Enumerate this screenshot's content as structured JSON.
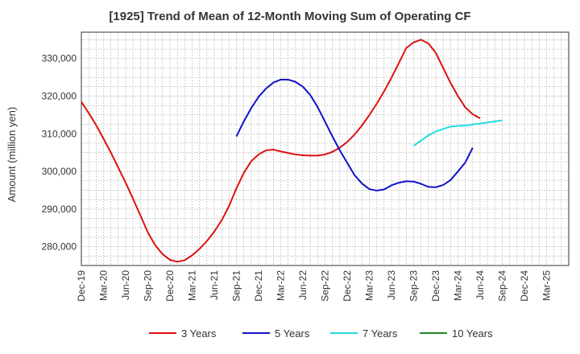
{
  "chart_data": {
    "type": "line",
    "title": "[1925]  Trend of Mean of 12-Month Moving Sum of Operating CF",
    "xlabel": "",
    "ylabel": "Amount (million yen)",
    "ylim": [
      275000,
      337000
    ],
    "yticks": [
      280000,
      290000,
      300000,
      310000,
      320000,
      330000
    ],
    "ytick_labels": [
      "280,000",
      "290,000",
      "300,000",
      "310,000",
      "320,000",
      "330,000"
    ],
    "x_start": "Dec-19",
    "x_months": 66,
    "xticks": [
      "Dec-19",
      "Mar-20",
      "Jun-20",
      "Sep-20",
      "Dec-20",
      "Mar-21",
      "Jun-21",
      "Sep-21",
      "Dec-21",
      "Mar-22",
      "Jun-22",
      "Sep-22",
      "Dec-22",
      "Mar-23",
      "Jun-23",
      "Sep-23",
      "Dec-23",
      "Mar-24",
      "Jun-24",
      "Sep-24",
      "Dec-24",
      "Mar-25"
    ],
    "grid": true,
    "legend_position": "bottom",
    "series": [
      {
        "name": "3 Years",
        "color": "#dd1111",
        "start_index": 0,
        "values": [
          318500,
          315500,
          312300,
          308700,
          305000,
          301000,
          297000,
          292700,
          288300,
          283800,
          280400,
          278000,
          276500,
          276000,
          276400,
          277700,
          279400,
          281500,
          284000,
          287000,
          290800,
          295500,
          299600,
          302700,
          304500,
          305600,
          305800,
          305300,
          304900,
          304500,
          304300,
          304200,
          304200,
          304500,
          305200,
          306300,
          307800,
          309800,
          312200,
          315000,
          318000,
          321300,
          324900,
          328800,
          332800,
          334300,
          335000,
          334000,
          331500,
          327500,
          323500,
          320000,
          317000,
          315200,
          314100
        ]
      },
      {
        "name": "5 Years",
        "color": "#1111cc",
        "start_index": 21,
        "values": [
          309300,
          313300,
          316800,
          319800,
          322000,
          323600,
          324400,
          324400,
          323800,
          322500,
          320300,
          317100,
          313200,
          309300,
          305600,
          302300,
          299000,
          296800,
          295300,
          294900,
          295200,
          296300,
          297000,
          297400,
          297300,
          296700,
          295900,
          295800,
          296400,
          297700,
          300000,
          302400,
          306300
        ]
      },
      {
        "name": "7 Years",
        "color": "#22dddd",
        "start_index": 45,
        "values": [
          306800,
          308200,
          309600,
          310600,
          311300,
          311900,
          312100,
          312200,
          312500,
          312700,
          313000,
          313300,
          313600
        ]
      },
      {
        "name": "10 Years",
        "color": "#228822",
        "start_index": 0,
        "values": []
      }
    ]
  }
}
